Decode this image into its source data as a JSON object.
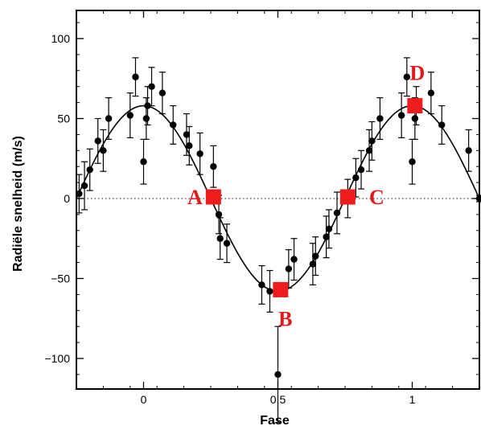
{
  "chart_data": {
    "type": "scatter",
    "xlabel": "Fase",
    "ylabel": "Radiële snelheid (m/s)",
    "xlim": [
      -0.25,
      1.25
    ],
    "ylim": [
      -120,
      120
    ],
    "x_ticks": [
      0,
      0.5,
      1
    ],
    "x_tick_labels": [
      "0",
      "0.5",
      "1"
    ],
    "y_ticks": [
      -100,
      -50,
      0,
      50,
      100
    ],
    "y_tick_labels": [
      "−100",
      "−50",
      "0",
      "50",
      "100"
    ],
    "grid": false,
    "zero_line": "dotted",
    "fit_curve": {
      "amplitude": 58,
      "period": 1,
      "phase_of_max": 0
    },
    "points": [
      {
        "x": -0.24,
        "y": 3,
        "err": 12
      },
      {
        "x": -0.22,
        "y": 8,
        "err": 15
      },
      {
        "x": -0.2,
        "y": 18,
        "err": 13
      },
      {
        "x": -0.17,
        "y": 36,
        "err": 14
      },
      {
        "x": -0.15,
        "y": 30,
        "err": 13
      },
      {
        "x": -0.13,
        "y": 50,
        "err": 13
      },
      {
        "x": -0.05,
        "y": 52,
        "err": 14
      },
      {
        "x": -0.03,
        "y": 76,
        "err": 12
      },
      {
        "x": 0.0,
        "y": 23,
        "err": 14
      },
      {
        "x": 0.01,
        "y": 50,
        "err": 13
      },
      {
        "x": 0.015,
        "y": 58,
        "err": 12
      },
      {
        "x": 0.03,
        "y": 70,
        "err": 12
      },
      {
        "x": 0.07,
        "y": 66,
        "err": 13
      },
      {
        "x": 0.11,
        "y": 46,
        "err": 12
      },
      {
        "x": 0.16,
        "y": 40,
        "err": 13
      },
      {
        "x": 0.17,
        "y": 33,
        "err": 12
      },
      {
        "x": 0.21,
        "y": 28,
        "err": 13
      },
      {
        "x": 0.26,
        "y": 20,
        "err": 13
      },
      {
        "x": 0.28,
        "y": -10,
        "err": 12
      },
      {
        "x": 0.285,
        "y": -25,
        "err": 13
      },
      {
        "x": 0.31,
        "y": -28,
        "err": 12
      },
      {
        "x": 0.44,
        "y": -54,
        "err": 12
      },
      {
        "x": 0.47,
        "y": -58,
        "err": 13
      },
      {
        "x": 0.5,
        "y": -110,
        "err": 30
      },
      {
        "x": 0.54,
        "y": -44,
        "err": 12
      },
      {
        "x": 0.56,
        "y": -38,
        "err": 13
      },
      {
        "x": 0.63,
        "y": -41,
        "err": 13
      },
      {
        "x": 0.64,
        "y": -36,
        "err": 12
      },
      {
        "x": 0.68,
        "y": -24,
        "err": 13
      },
      {
        "x": 0.69,
        "y": -19,
        "err": 12
      },
      {
        "x": 0.72,
        "y": -9,
        "err": 13
      },
      {
        "x": 0.76,
        "y": 0,
        "err": 12
      },
      {
        "x": 0.79,
        "y": 13,
        "err": 12
      },
      {
        "x": 0.81,
        "y": 18,
        "err": 12
      },
      {
        "x": 0.84,
        "y": 30,
        "err": 13
      },
      {
        "x": 0.85,
        "y": 36,
        "err": 12
      },
      {
        "x": 0.88,
        "y": 50,
        "err": 13
      },
      {
        "x": 0.96,
        "y": 52,
        "err": 14
      },
      {
        "x": 0.98,
        "y": 76,
        "err": 12
      },
      {
        "x": 1.0,
        "y": 23,
        "err": 14
      },
      {
        "x": 1.01,
        "y": 50,
        "err": 13
      },
      {
        "x": 1.015,
        "y": 58,
        "err": 12
      },
      {
        "x": 1.07,
        "y": 66,
        "err": 13
      },
      {
        "x": 1.11,
        "y": 46,
        "err": 12
      },
      {
        "x": 1.21,
        "y": 30,
        "err": 13
      },
      {
        "x": 1.25,
        "y": 0,
        "err": 2
      }
    ],
    "markers": [
      {
        "label": "A",
        "x": 0.26,
        "y": 1,
        "label_side": "left"
      },
      {
        "label": "B",
        "x": 0.51,
        "y": -57,
        "label_side": "below"
      },
      {
        "label": "C",
        "x": 0.76,
        "y": 1,
        "label_side": "right"
      },
      {
        "label": "D",
        "x": 1.01,
        "y": 58,
        "label_side": "above"
      }
    ],
    "marker_color": "#ee1c1c",
    "marker_label_color": "#e0191b"
  }
}
